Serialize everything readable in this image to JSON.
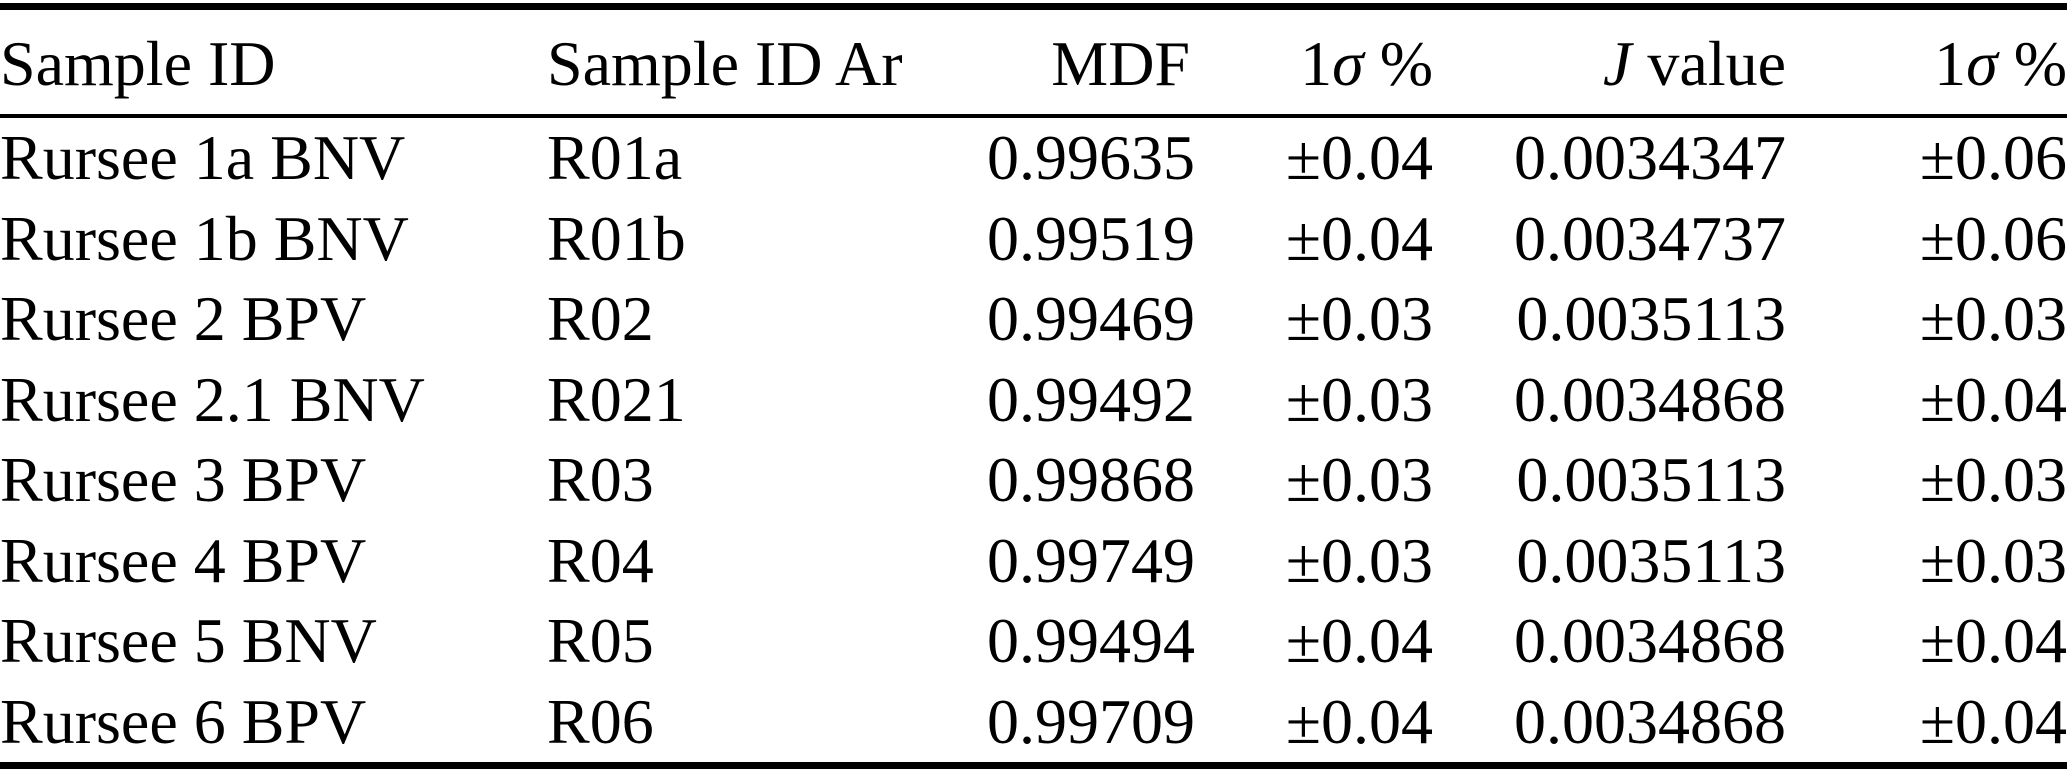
{
  "colors": {
    "background": "#ffffff",
    "text": "#000000",
    "rule": "#000000"
  },
  "table": {
    "columns": [
      {
        "id": "sample-id",
        "align": "left",
        "parts": [
          {
            "t": "Sample ID"
          }
        ]
      },
      {
        "id": "sample-id-ar",
        "align": "left",
        "parts": [
          {
            "t": "Sample ID Ar"
          }
        ]
      },
      {
        "id": "mdf",
        "align": "right",
        "parts": [
          {
            "t": "MDF"
          }
        ]
      },
      {
        "id": "mdf-1sigma-pct",
        "align": "right",
        "parts": [
          {
            "t": "1"
          },
          {
            "t": "σ",
            "i": true
          },
          {
            "t": " %"
          }
        ]
      },
      {
        "id": "j-value",
        "align": "right",
        "parts": [
          {
            "t": "J",
            "i": true
          },
          {
            "t": " value"
          }
        ]
      },
      {
        "id": "j-1sigma-pct",
        "align": "right",
        "parts": [
          {
            "t": "1"
          },
          {
            "t": "σ",
            "i": true
          },
          {
            "t": " %"
          }
        ]
      }
    ],
    "rows": [
      [
        "Rursee 1a BNV",
        "R01a",
        "0.99635",
        "±0.04",
        "0.0034347",
        "±0.06"
      ],
      [
        "Rursee 1b BNV",
        "R01b",
        "0.99519",
        "±0.04",
        "0.0034737",
        "±0.06"
      ],
      [
        "Rursee 2 BPV",
        "R02",
        "0.99469",
        "±0.03",
        "0.0035113",
        "±0.03"
      ],
      [
        "Rursee 2.1 BNV",
        "R021",
        "0.99492",
        "±0.03",
        "0.0034868",
        "±0.04"
      ],
      [
        "Rursee 3 BPV",
        "R03",
        "0.99868",
        "±0.03",
        "0.0035113",
        "±0.03"
      ],
      [
        "Rursee 4 BPV",
        "R04",
        "0.99749",
        "±0.03",
        "0.0035113",
        "±0.03"
      ],
      [
        "Rursee 5 BNV",
        "R05",
        "0.99494",
        "±0.04",
        "0.0034868",
        "±0.04"
      ],
      [
        "Rursee 6 BPV",
        "R06",
        "0.99709",
        "±0.04",
        "0.0034868",
        "±0.04"
      ]
    ]
  }
}
